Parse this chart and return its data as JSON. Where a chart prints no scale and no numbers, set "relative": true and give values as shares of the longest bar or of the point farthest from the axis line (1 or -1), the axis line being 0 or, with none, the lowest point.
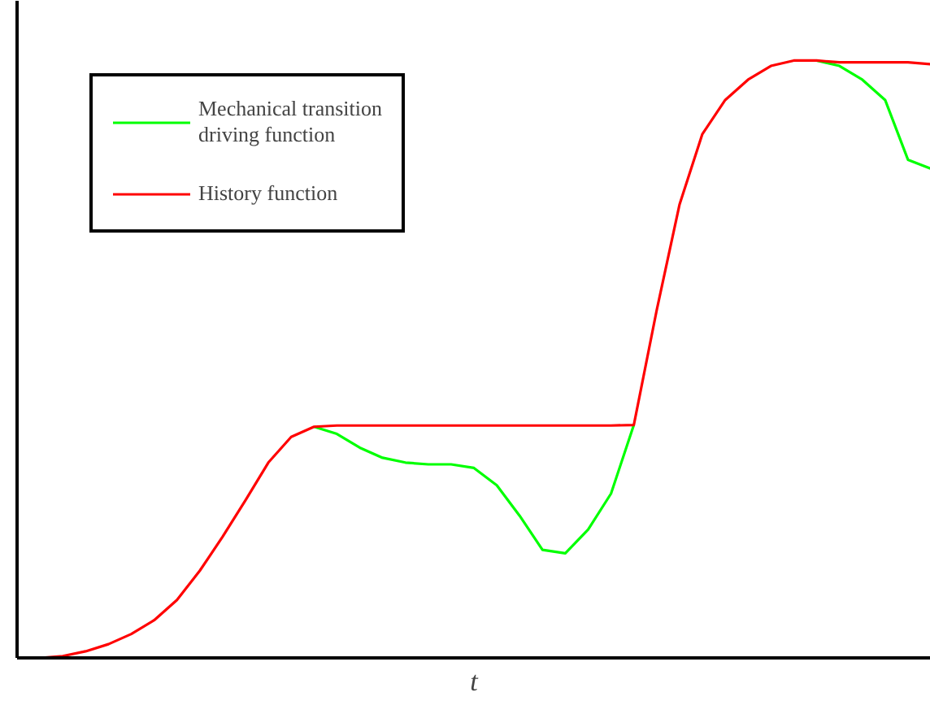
{
  "chart_data": {
    "type": "line",
    "relative": true,
    "xlabel": "t",
    "legend": "top left",
    "marker": "none",
    "line_style": "solid",
    "categories": [
      null,
      null,
      null,
      null,
      null,
      null,
      null,
      null,
      null,
      null,
      null,
      null,
      null,
      null,
      null,
      null,
      null,
      null,
      null,
      null,
      null,
      null,
      null,
      null,
      null,
      null,
      null,
      null,
      null,
      null,
      null,
      null,
      null,
      null,
      null,
      null,
      null,
      null,
      null,
      null,
      null
    ],
    "series": [
      {
        "name": "Mechanical transition driving function",
        "color": "#00ff00",
        "values": [
          null,
          null,
          null,
          null,
          null,
          null,
          null,
          null,
          null,
          null,
          null,
          null,
          null,
          0.387,
          0.375,
          0.352,
          0.335,
          0.327,
          0.324,
          0.324,
          0.318,
          0.289,
          0.238,
          0.181,
          0.175,
          0.215,
          0.275,
          0.39,
          null,
          null,
          null,
          null,
          null,
          null,
          null,
          1,
          0.991,
          0.968,
          0.934,
          0.834,
          0.819
        ]
      },
      {
        "name": "History function",
        "color": "#ff0000",
        "values": [
          0,
          0,
          0.003,
          0.011,
          0.023,
          0.04,
          0.063,
          0.097,
          0.146,
          0.203,
          0.264,
          0.327,
          0.37,
          0.387,
          0.389,
          0.389,
          0.389,
          0.389,
          0.389,
          0.389,
          0.389,
          0.389,
          0.389,
          0.389,
          0.389,
          0.389,
          0.389,
          0.39,
          0.582,
          0.759,
          0.877,
          0.934,
          0.968,
          0.991,
          1,
          1,
          0.997,
          0.997,
          0.997,
          0.997,
          0.994
        ]
      }
    ]
  }
}
